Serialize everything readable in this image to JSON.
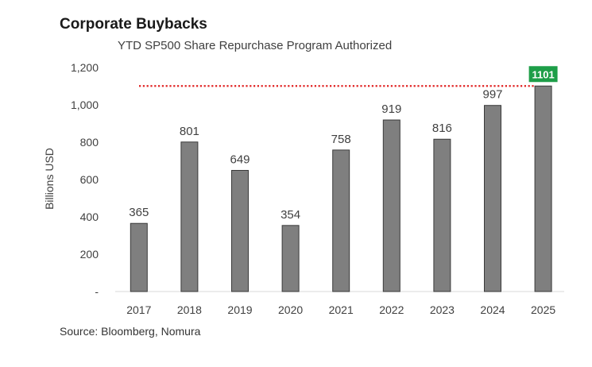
{
  "chart_data": {
    "type": "bar",
    "title": "Corporate Buybacks",
    "subtitle": "YTD SP500 Share Repurchase Program Authorized",
    "xlabel": "",
    "ylabel": "Billions USD",
    "categories": [
      "2017",
      "2018",
      "2019",
      "2020",
      "2021",
      "2022",
      "2023",
      "2024",
      "2025"
    ],
    "values": [
      365,
      801,
      649,
      354,
      758,
      919,
      816,
      997,
      1101
    ],
    "data_labels": [
      "365",
      "801",
      "649",
      "354",
      "758",
      "919",
      "816",
      "997",
      "1101"
    ],
    "ylim": [
      0,
      1200
    ],
    "yticks": [
      0,
      200,
      400,
      600,
      800,
      1000,
      1200
    ],
    "ytick_labels": [
      "-",
      "200",
      "400",
      "600",
      "800",
      "1,000",
      "1,200"
    ],
    "reference_line": {
      "value": 1101,
      "style": "dotted",
      "color": "#e02020"
    },
    "highlight": {
      "category": "2025",
      "label": "1101",
      "color": "#1e9e48"
    },
    "bar_color": "#7f7f7f",
    "grid": false,
    "legend": "none",
    "source": "Source: Bloomberg, Nomura"
  }
}
